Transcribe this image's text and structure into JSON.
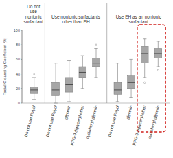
{
  "chart_data": {
    "type": "box",
    "y_label": "Facial Cleansing Coefficient [%]",
    "categories": [
      "Do not use Polyol",
      "Do not use Polyol",
      "glycerin",
      "PPG-9 diglyceryl ether",
      "cyclohexyl glycerin",
      "Do not use Polyol",
      "glycerin",
      "PPG-9 diglyceryl ether",
      "cyclohexyl glycerin"
    ],
    "groups": [
      {
        "label": "Do not use nonionic surfactant",
        "start": 0,
        "end": 0
      },
      {
        "label": "Use nonionic surfactants other than EH",
        "start": 1,
        "end": 4
      },
      {
        "label": "Use EH as an nonionic surfactant",
        "start": 5,
        "end": 8
      }
    ],
    "boxes": {
      "min": [
        5,
        0,
        2,
        20,
        35,
        2,
        8,
        35,
        50
      ],
      "q1": [
        13,
        10,
        15,
        35,
        50,
        12,
        20,
        55,
        62
      ],
      "median": [
        18,
        18,
        25,
        42,
        55,
        18,
        28,
        68,
        68
      ],
      "q3": [
        22,
        28,
        35,
        50,
        62,
        28,
        38,
        78,
        75
      ],
      "max": [
        35,
        55,
        58,
        65,
        75,
        55,
        60,
        88,
        85
      ]
    },
    "outliers": [
      [
        40
      ],
      [],
      [],
      [],
      [
        80
      ],
      [],
      [],
      [
        28
      ],
      [
        45
      ]
    ],
    "color": "#a6a6a6",
    "ylim": [
      0,
      100
    ],
    "yticks": [
      0,
      20,
      40,
      60,
      80,
      100
    ],
    "grid": false
  }
}
